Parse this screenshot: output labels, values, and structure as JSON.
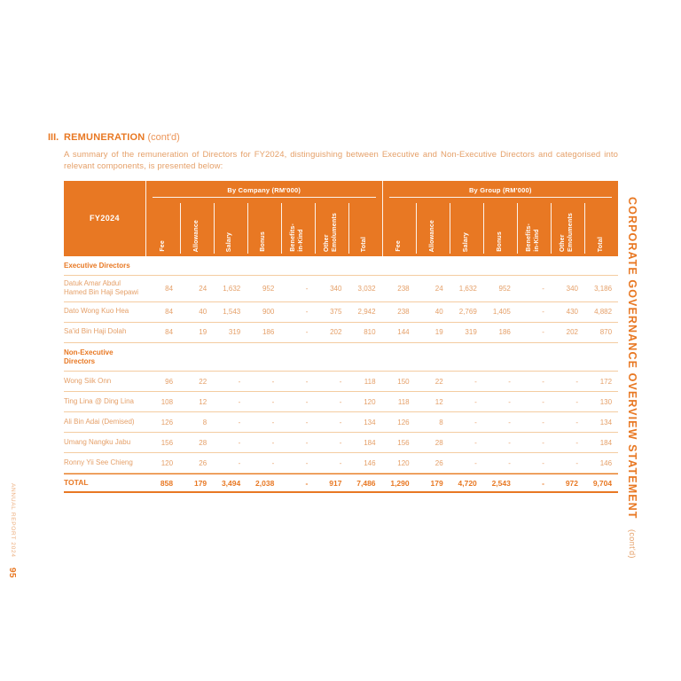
{
  "page": {
    "left_rail": {
      "report_label": "ANNUAL REPORT 2024",
      "page_number": "95"
    },
    "right_rail": {
      "title": "CORPORATE GOVERNANCE OVERVIEW STATEMENT",
      "suffix": "(cont'd)"
    },
    "section": {
      "numeral": "III.",
      "heading": "REMUNERATION",
      "contd": "(cont'd)"
    },
    "intro": "A summary of the remuneration of Directors for FY2024, distinguishing between Executive and Non-Executive Directors and categorised into relevant components, is presented below:"
  },
  "table": {
    "year_label": "FY2024",
    "group_headers": [
      "By Company (RM'000)",
      "By Group (RM'000)"
    ],
    "column_labels": [
      "Fee",
      "Allowance",
      "Salary",
      "Bonus",
      "Benefits-\nin-Kind",
      "Other\nEmoluments",
      "Total"
    ],
    "sections": [
      {
        "label": "Executive Directors",
        "rows": [
          {
            "name": "Datuk Amar Abdul Hamed Bin Haji Sepawi",
            "company": [
              "84",
              "24",
              "1,632",
              "952",
              "-",
              "340",
              "3,032"
            ],
            "group": [
              "238",
              "24",
              "1,632",
              "952",
              "-",
              "340",
              "3,186"
            ]
          },
          {
            "name": "Dato Wong Kuo Hea",
            "company": [
              "84",
              "40",
              "1,543",
              "900",
              "-",
              "375",
              "2,942"
            ],
            "group": [
              "238",
              "40",
              "2,769",
              "1,405",
              "-",
              "430",
              "4,882"
            ]
          },
          {
            "name": "Sa'id Bin Haji Dolah",
            "company": [
              "84",
              "19",
              "319",
              "186",
              "-",
              "202",
              "810"
            ],
            "group": [
              "144",
              "19",
              "319",
              "186",
              "-",
              "202",
              "870"
            ]
          }
        ]
      },
      {
        "label": "Non-Executive Directors",
        "rows": [
          {
            "name": "Wong Siik Onn",
            "company": [
              "96",
              "22",
              "-",
              "-",
              "-",
              "-",
              "118"
            ],
            "group": [
              "150",
              "22",
              "-",
              "-",
              "-",
              "-",
              "172"
            ]
          },
          {
            "name": "Ting Lina @ Ding Lina",
            "company": [
              "108",
              "12",
              "-",
              "-",
              "-",
              "-",
              "120"
            ],
            "group": [
              "118",
              "12",
              "-",
              "-",
              "-",
              "-",
              "130"
            ]
          },
          {
            "name": "Ali Bin Adai (Demised)",
            "company": [
              "126",
              "8",
              "-",
              "-",
              "-",
              "-",
              "134"
            ],
            "group": [
              "126",
              "8",
              "-",
              "-",
              "-",
              "-",
              "134"
            ]
          },
          {
            "name": "Umang Nangku Jabu",
            "company": [
              "156",
              "28",
              "-",
              "-",
              "-",
              "-",
              "184"
            ],
            "group": [
              "156",
              "28",
              "-",
              "-",
              "-",
              "-",
              "184"
            ]
          },
          {
            "name": "Ronny Yii See Chieng",
            "company": [
              "120",
              "26",
              "-",
              "-",
              "-",
              "-",
              "146"
            ],
            "group": [
              "120",
              "26",
              "-",
              "-",
              "-",
              "-",
              "146"
            ]
          }
        ]
      }
    ],
    "total": {
      "label": "TOTAL",
      "company": [
        "858",
        "179",
        "3,494",
        "2,038",
        "-",
        "917",
        "7,486"
      ],
      "group": [
        "1,290",
        "179",
        "4,720",
        "2,543",
        "-",
        "972",
        "9,704"
      ]
    }
  },
  "colors": {
    "accent": "#E87823",
    "body_text": "#E5A069",
    "row_border": "#F4CCA1"
  }
}
